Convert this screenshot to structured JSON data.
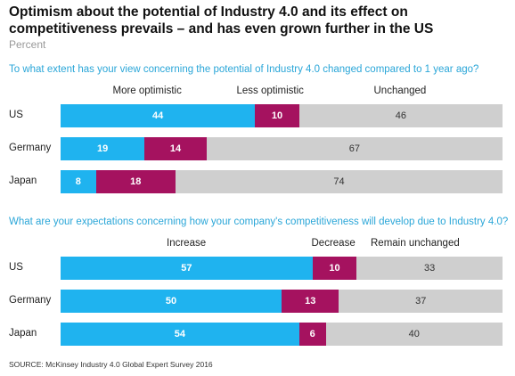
{
  "header": {
    "title": "Optimism about the potential of Industry 4.0 and its effect on competitiveness prevails – and has even grown further in the US",
    "subtitle": "Percent"
  },
  "colors": {
    "blue": "#1fb3ef",
    "crimson": "#a5125f",
    "gray": "#cfcfcf",
    "question": "#2aa6d8"
  },
  "chart_data": [
    {
      "type": "bar",
      "stacked": true,
      "orientation": "horizontal",
      "question": "To what extent has your view concerning the potential of Industry 4.0 changed compared to 1 year ago?",
      "categories": [
        "US",
        "Germany",
        "Japan"
      ],
      "series": [
        {
          "name": "More optimistic",
          "values": [
            44,
            19,
            8
          ]
        },
        {
          "name": "Less optimistic",
          "values": [
            10,
            14,
            18
          ]
        },
        {
          "name": "Unchanged",
          "values": [
            46,
            67,
            74
          ]
        }
      ],
      "xlim": [
        0,
        100
      ]
    },
    {
      "type": "bar",
      "stacked": true,
      "orientation": "horizontal",
      "question": "What are your expectations concerning how your company's competitiveness will develop due to Industry 4.0?",
      "categories": [
        "US",
        "Germany",
        "Japan"
      ],
      "series": [
        {
          "name": "Increase",
          "values": [
            57,
            50,
            54
          ]
        },
        {
          "name": "Decrease",
          "values": [
            10,
            13,
            6
          ]
        },
        {
          "name": "Remain unchanged",
          "values": [
            33,
            37,
            40
          ]
        }
      ],
      "xlim": [
        0,
        100
      ]
    }
  ],
  "footer": {
    "source": "SOURCE: McKinsey Industry 4.0 Global Expert Survey 2016"
  }
}
